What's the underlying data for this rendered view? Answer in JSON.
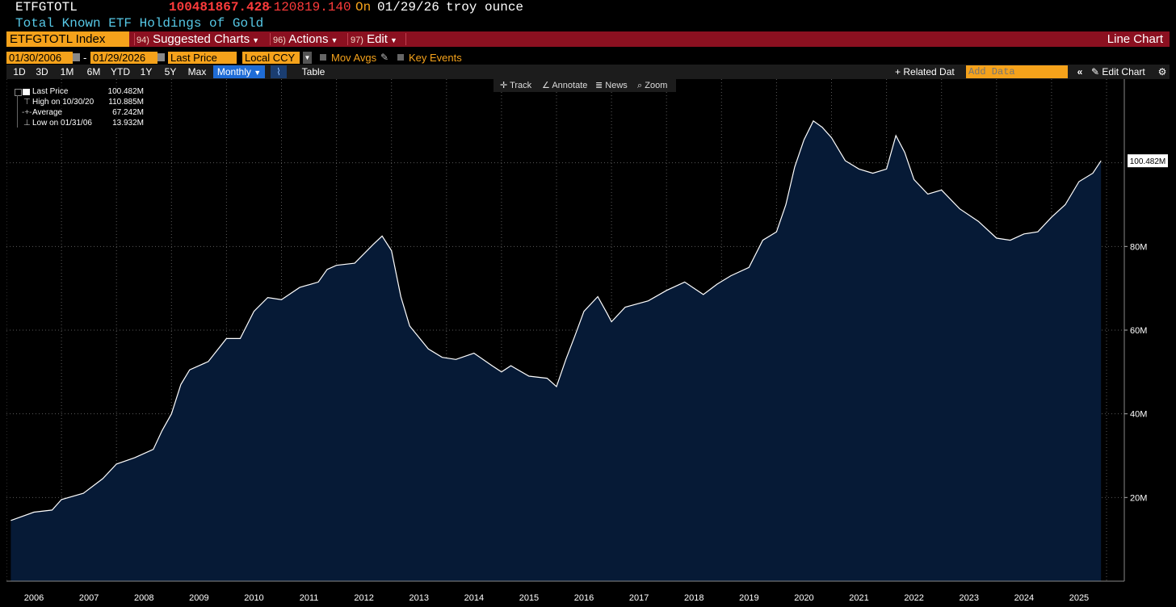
{
  "header": {
    "ticker": "ETFGTOTL",
    "price": "100481867.428",
    "change": "-120819.140",
    "on_label": "On",
    "date": "01/29/26",
    "unit": "troy ounce",
    "description": "Total Known ETF Holdings of Gold"
  },
  "menubar": {
    "security": "ETFGTOTL Index",
    "suggested_num": "94)",
    "suggested_label": "Suggested Charts",
    "actions_num": "96)",
    "actions_label": "Actions",
    "edit_num": "97)",
    "edit_label": "Edit",
    "chart_type": "Line Chart"
  },
  "controls": {
    "start_date": "01/30/2006",
    "date_dash": "-",
    "end_date": "01/29/2026",
    "field": "Last Price",
    "currency": "Local CCY",
    "mov_avgs": "Mov Avgs",
    "key_events": "Key Events"
  },
  "ranges": {
    "buttons": [
      "1D",
      "3D",
      "1M",
      "6M",
      "YTD",
      "1Y",
      "5Y",
      "Max"
    ],
    "period": "Monthly",
    "table": "Table",
    "related": "Related Dat",
    "add_data_placeholder": "Add Data",
    "edit_chart": "Edit Chart"
  },
  "chart_toolbar": {
    "track": "Track",
    "annotate": "Annotate",
    "news": "News",
    "zoom": "Zoom"
  },
  "legend": {
    "last_label": "Last Price",
    "last_value": "100.482M",
    "high_label": "High on 10/30/20",
    "high_value": "110.885M",
    "avg_label": "Average",
    "avg_value": "67.242M",
    "low_label": "Low on 01/31/06",
    "low_value": "13.932M"
  },
  "colors": {
    "accent": "#f5a21b",
    "menu_bar": "#8b1020",
    "price": "#ff3b3b",
    "fill": "#061a36",
    "description": "#56c8e6",
    "period_button": "#1f6cd6"
  },
  "chart_data": {
    "type": "area",
    "title": "",
    "xlabel": "",
    "ylabel": "",
    "ylim": [
      0,
      120
    ],
    "y_ticks": [
      20,
      40,
      60,
      80
    ],
    "y_tick_labels": [
      "20M",
      "40M",
      "60M",
      "80M"
    ],
    "last_label": "100.482M",
    "x_labels": [
      "2006",
      "2007",
      "2008",
      "2009",
      "2010",
      "2011",
      "2012",
      "2013",
      "2014",
      "2015",
      "2016",
      "2017",
      "2018",
      "2019",
      "2020",
      "2021",
      "2022",
      "2023",
      "2024",
      "2025"
    ],
    "series": [
      {
        "values": [
          [
            2006.08,
            14.5
          ],
          [
            2006.5,
            16.5
          ],
          [
            2006.83,
            17.0
          ],
          [
            2007.0,
            19.5
          ],
          [
            2007.4,
            21.0
          ],
          [
            2007.75,
            24.5
          ],
          [
            2008.0,
            28.0
          ],
          [
            2008.33,
            29.5
          ],
          [
            2008.67,
            31.5
          ],
          [
            2008.83,
            36.0
          ],
          [
            2009.0,
            40.0
          ],
          [
            2009.17,
            47.0
          ],
          [
            2009.33,
            50.5
          ],
          [
            2009.67,
            52.5
          ],
          [
            2010.0,
            58.0
          ],
          [
            2010.25,
            58.0
          ],
          [
            2010.5,
            64.5
          ],
          [
            2010.75,
            67.8
          ],
          [
            2011.0,
            67.3
          ],
          [
            2011.33,
            70.2
          ],
          [
            2011.67,
            71.5
          ],
          [
            2011.83,
            74.5
          ],
          [
            2012.0,
            75.5
          ],
          [
            2012.33,
            76.0
          ],
          [
            2012.67,
            80.5
          ],
          [
            2012.83,
            82.5
          ],
          [
            2013.0,
            79.0
          ],
          [
            2013.17,
            68.0
          ],
          [
            2013.33,
            61.0
          ],
          [
            2013.67,
            55.5
          ],
          [
            2013.92,
            53.5
          ],
          [
            2014.17,
            53.0
          ],
          [
            2014.5,
            54.5
          ],
          [
            2014.83,
            51.5
          ],
          [
            2015.0,
            50.0
          ],
          [
            2015.17,
            51.5
          ],
          [
            2015.5,
            49.0
          ],
          [
            2015.83,
            48.5
          ],
          [
            2016.0,
            46.5
          ],
          [
            2016.17,
            53.0
          ],
          [
            2016.33,
            58.5
          ],
          [
            2016.5,
            64.5
          ],
          [
            2016.75,
            68.0
          ],
          [
            2016.92,
            64.0
          ],
          [
            2017.0,
            62.0
          ],
          [
            2017.25,
            65.5
          ],
          [
            2017.67,
            67.0
          ],
          [
            2018.0,
            69.5
          ],
          [
            2018.33,
            71.5
          ],
          [
            2018.67,
            68.5
          ],
          [
            2018.92,
            71.0
          ],
          [
            2019.17,
            73.0
          ],
          [
            2019.5,
            75.0
          ],
          [
            2019.75,
            81.5
          ],
          [
            2020.0,
            83.5
          ],
          [
            2020.17,
            90.0
          ],
          [
            2020.33,
            99.0
          ],
          [
            2020.5,
            105.5
          ],
          [
            2020.67,
            110.0
          ],
          [
            2020.83,
            108.5
          ],
          [
            2021.0,
            106.0
          ],
          [
            2021.25,
            100.5
          ],
          [
            2021.5,
            98.5
          ],
          [
            2021.75,
            97.5
          ],
          [
            2022.0,
            98.5
          ],
          [
            2022.17,
            106.5
          ],
          [
            2022.33,
            102.5
          ],
          [
            2022.5,
            96.0
          ],
          [
            2022.75,
            92.5
          ],
          [
            2023.0,
            93.5
          ],
          [
            2023.33,
            89.0
          ],
          [
            2023.67,
            86.0
          ],
          [
            2024.0,
            82.0
          ],
          [
            2024.25,
            81.5
          ],
          [
            2024.5,
            83.0
          ],
          [
            2024.75,
            83.5
          ],
          [
            2025.0,
            87.0
          ],
          [
            2025.25,
            90.0
          ],
          [
            2025.5,
            95.5
          ],
          [
            2025.75,
            97.5
          ],
          [
            2025.9,
            100.48
          ]
        ]
      }
    ]
  }
}
